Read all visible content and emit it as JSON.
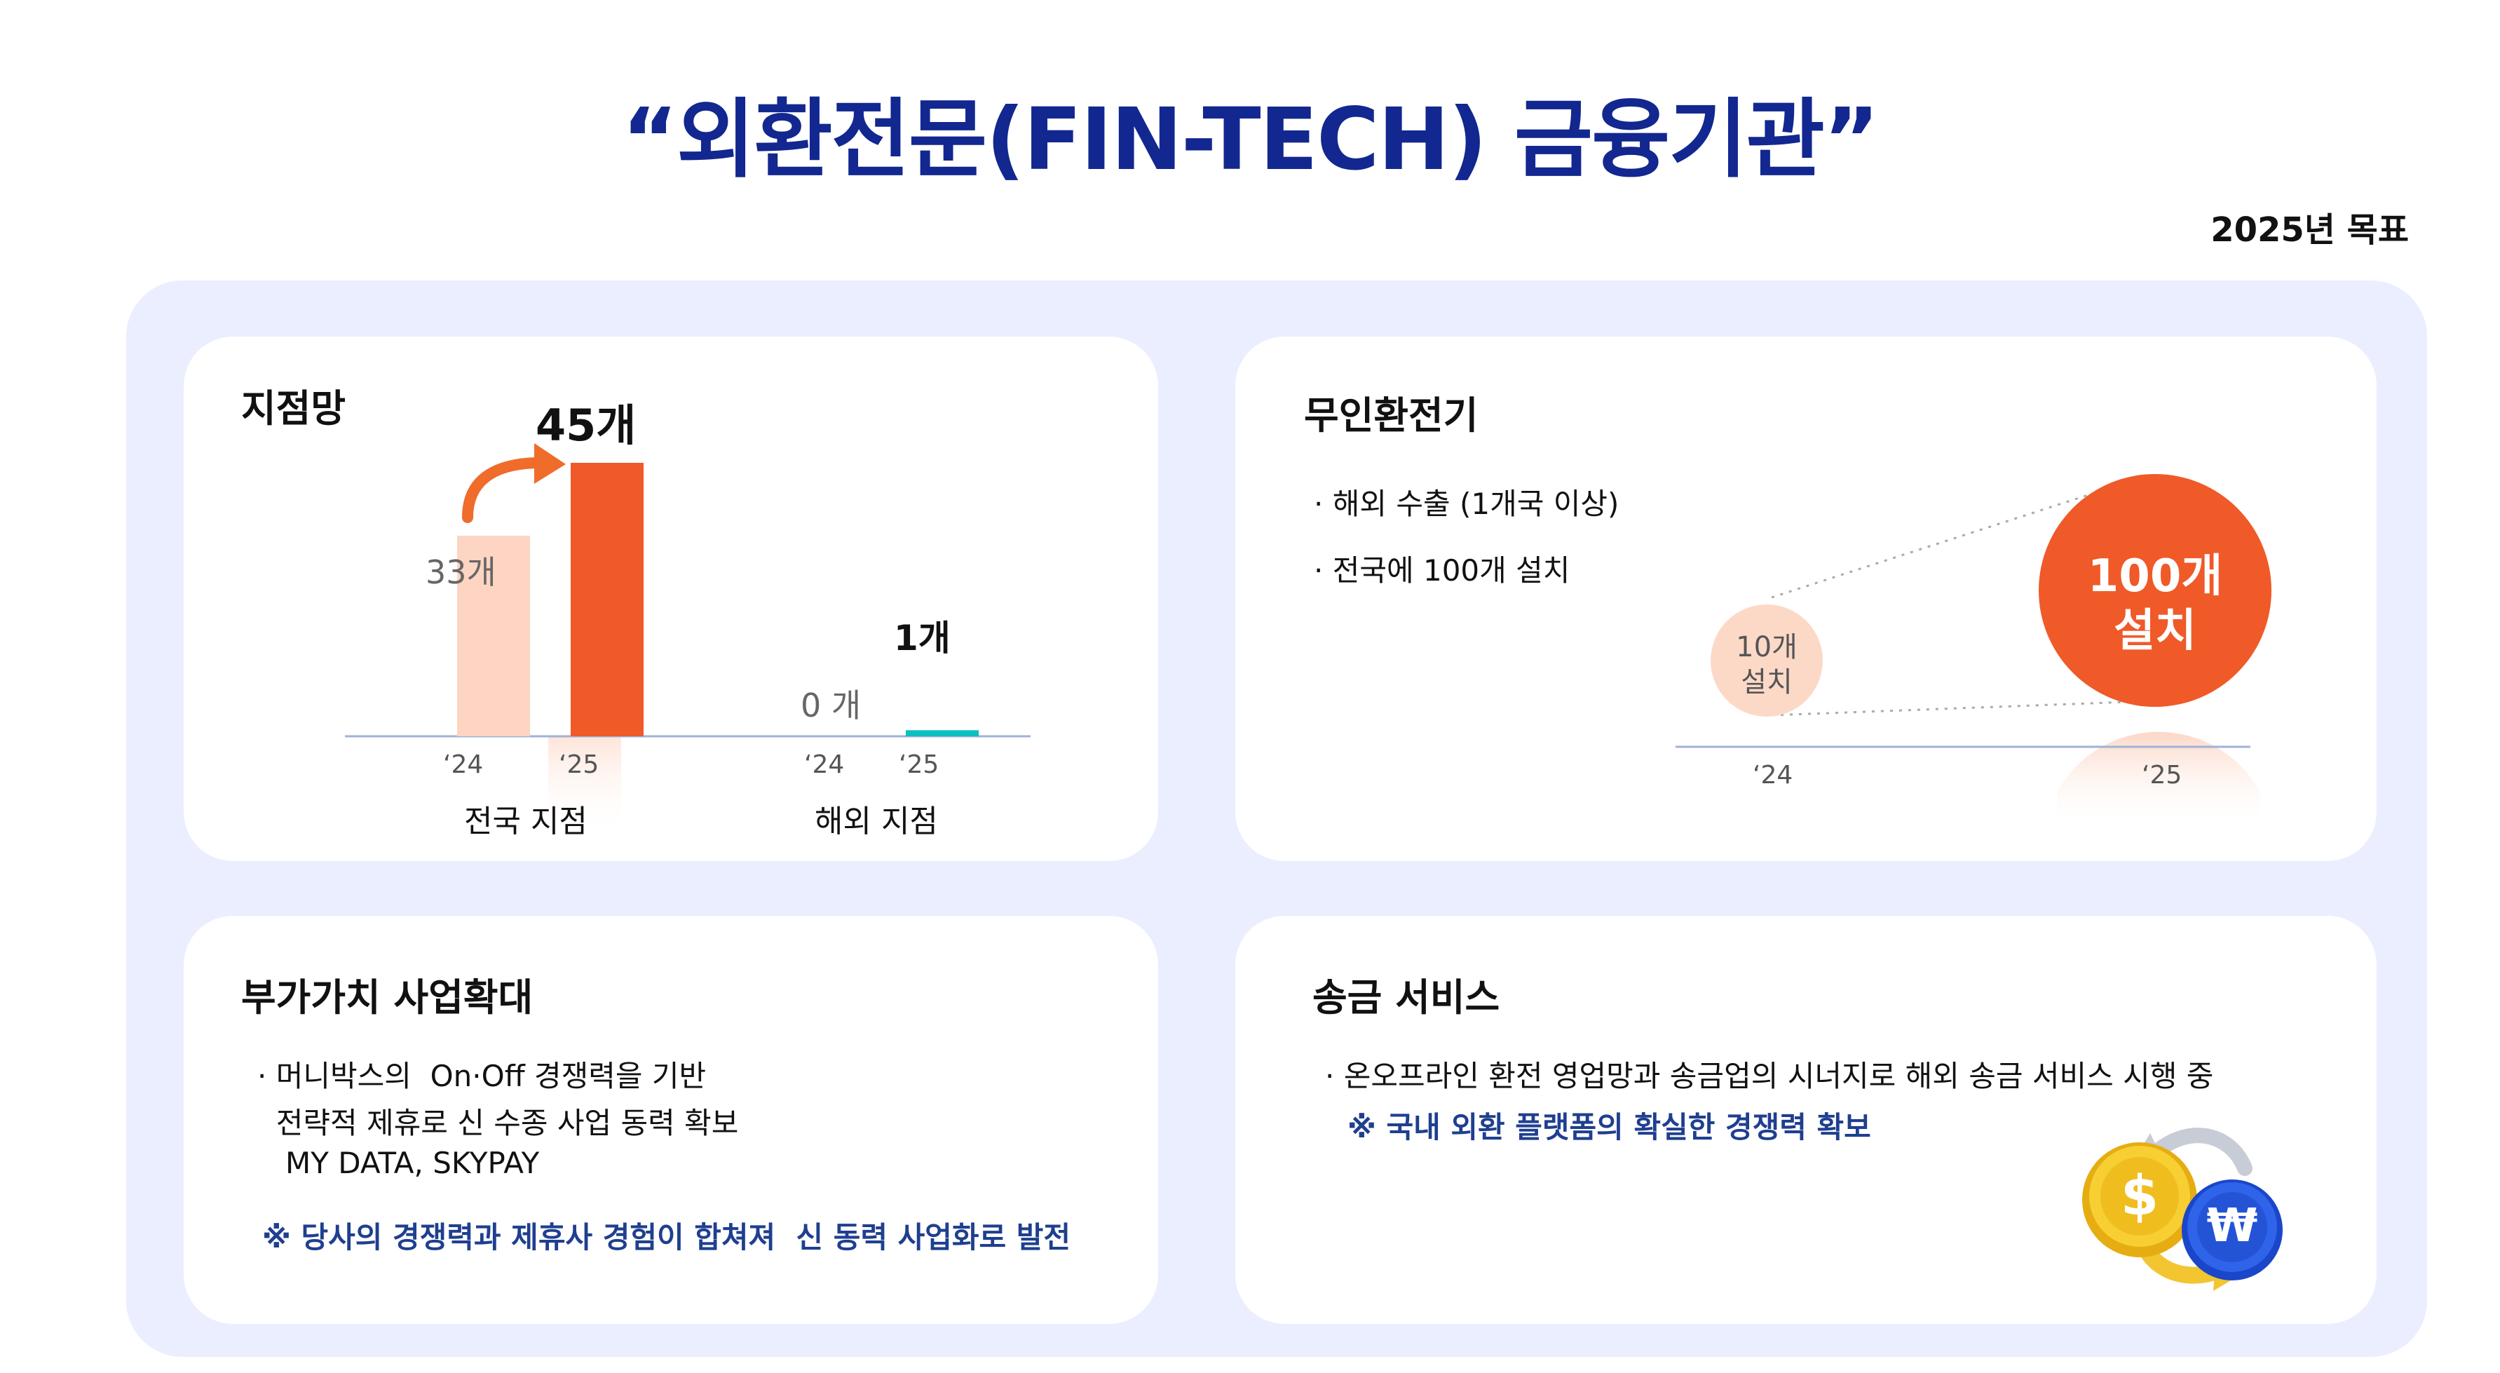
{
  "header": {
    "title": "“외환전문(FIN-TECH) 금융기관”",
    "subtitle": "2025년 목표"
  },
  "branch_card": {
    "title": "지점망",
    "domestic": {
      "v24": "33개",
      "v25": "45개",
      "y24": "‘24",
      "y25": "‘25",
      "caption": "전국 지점"
    },
    "overseas": {
      "v24": "0 개",
      "v25": "1개",
      "y24": "‘24",
      "y25": "‘25",
      "caption": "해외 지점"
    }
  },
  "chart_data": {
    "type": "bar",
    "categories": [
      "전국 지점",
      "해외 지점"
    ],
    "series": [
      {
        "name": "‘24",
        "values": [
          33,
          0
        ]
      },
      {
        "name": "‘25",
        "values": [
          45,
          1
        ]
      }
    ],
    "colors": {
      "y24_domestic": "#fdd5c2",
      "y25_domestic": "#ef5a28",
      "y25_overseas": "#0dbfbf"
    }
  },
  "kiosk_card": {
    "title": "무인환전기",
    "bullets": [
      "· 해외 수출 (1개국 이상)",
      "· 전국에 100개 설치"
    ],
    "small_label_line1": "10개",
    "small_label_line2": "설치",
    "big_label_line1": "100개",
    "big_label_line2": "설치",
    "y24": "‘24",
    "y25": "‘25"
  },
  "value_card": {
    "title": "부가가치 사업확대",
    "lines": [
      "· 머니박스의  On·Off 경쟁력을 기반",
      "  전략적 제휴로 신 수종 사업 동력 확보",
      "   MY DATA, SKYPAY"
    ],
    "note": "※ 당사의 경쟁력과 제휴사 경험이 합쳐져  신 동력 사업화로 발전"
  },
  "remit_card": {
    "title": "송금 서비스",
    "line": "· 온오프라인 환전 영업망과 송금업의 시너지로 해외 송금 서비스 시행 중",
    "note": "※ 국내 외환 플랫폼의 확실한 경쟁력 확보",
    "icon_dollar": "$",
    "icon_won": "₩"
  },
  "colors": {
    "title": "#12278f",
    "accent": "#ef5a28",
    "teal": "#0dbfbf",
    "note": "#1f3f8f",
    "panel": "#eaeefe"
  }
}
